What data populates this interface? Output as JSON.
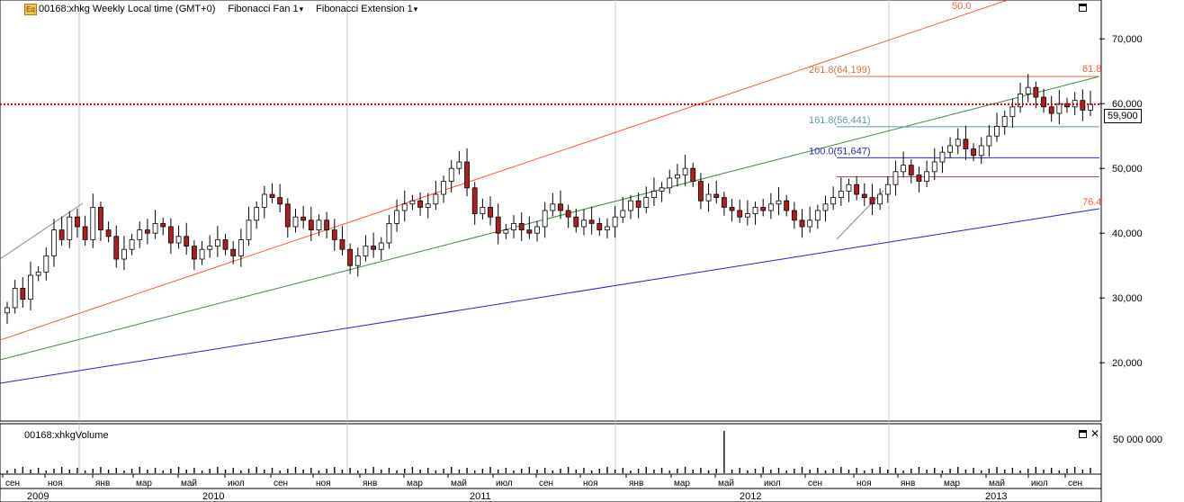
{
  "header": {
    "icon_label": "Eq",
    "symbol": "00168:xhkg Weekly Local time (GMT+0)",
    "tool1": "Fibonacci Fan 1",
    "tool2": "Fibonacci Extension 1"
  },
  "volume_panel": {
    "label": "00168:xhkgVolume",
    "axis_label": "50 000 000"
  },
  "current_price_label": "59,900",
  "colors": {
    "up_candle": "#ffffff",
    "down_candle": "#b01e1e",
    "price_line": "#d40000",
    "fan_500": "#ff5a36",
    "fan_618": "#3c8c3c",
    "fan_764": "#2020d0",
    "ext_2618": "#cc7744",
    "ext_1618": "#5a9aaa",
    "ext_1000": "#2a2ab0",
    "ext_base": "#a05050"
  },
  "chart_data": {
    "type": "candlestick",
    "title": "00168:xhkg Weekly Local time (GMT+0)",
    "y_axis": {
      "ticks": [
        "20,000",
        "30,000",
        "40,000",
        "50,000",
        "60,000",
        "70,000"
      ],
      "tick_values": [
        20000,
        30000,
        40000,
        50000,
        60000,
        70000
      ],
      "range": [
        11000,
        76000
      ]
    },
    "x_axis": {
      "month_labels": [
        "сен",
        "ноя",
        "янв",
        "мар",
        "май",
        "июл",
        "сен",
        "ноя",
        "янв",
        "мар",
        "май",
        "июл",
        "сен",
        "ноя",
        "янв",
        "мар",
        "май",
        "июл",
        "сен",
        "ноя",
        "янв",
        "мар",
        "май",
        "июл",
        "сен"
      ],
      "year_labels": [
        "2009",
        "2010",
        "2011",
        "2012",
        "2013"
      ]
    },
    "current_price": 59900,
    "fibonacci_fan": [
      {
        "level": "50.0",
        "color": "#ff5a36"
      },
      {
        "level": "61.8",
        "color": "#3c8c3c"
      },
      {
        "level": "76.4",
        "color": "#2020d0"
      }
    ],
    "fibonacci_extension": [
      {
        "label": "261.8(64,199)",
        "value": 64199,
        "color": "#cc7744"
      },
      {
        "label": "161.8(56,441)",
        "value": 56441,
        "color": "#5a9aaa"
      },
      {
        "label": "100.0(51,647)",
        "value": 51647,
        "color": "#2a2ab0"
      },
      {
        "label": "",
        "value": 48700,
        "color": "#a05050"
      }
    ],
    "closes": [
      28500,
      31500,
      29800,
      33500,
      34000,
      36500,
      40500,
      39000,
      42500,
      41000,
      39000,
      44000,
      40500,
      39500,
      36000,
      37500,
      39000,
      40500,
      40000,
      41500,
      41000,
      38500,
      39500,
      38000,
      36000,
      37500,
      38000,
      39000,
      37500,
      36500,
      39000,
      42000,
      44000,
      46000,
      45500,
      44500,
      41000,
      42500,
      42000,
      40500,
      42000,
      40500,
      39000,
      37500,
      35000,
      36500,
      38000,
      37500,
      38500,
      41500,
      43500,
      44500,
      45000,
      44000,
      44500,
      46000,
      48000,
      50000,
      51000,
      47000,
      43000,
      44000,
      42500,
      40000,
      40500,
      41500,
      40500,
      40000,
      41000,
      43500,
      44500,
      43500,
      42500,
      41000,
      42000,
      41500,
      40500,
      41000,
      42500,
      43500,
      45000,
      44000,
      45500,
      46500,
      47000,
      48500,
      49000,
      50000,
      48000,
      45000,
      46000,
      45500,
      44000,
      43500,
      42500,
      43000,
      44000,
      43500,
      44500,
      45000,
      43500,
      42000,
      41000,
      42000,
      43500,
      44500,
      45500,
      46500,
      47500,
      46000,
      45500,
      44500,
      46000,
      47500,
      49500,
      50500,
      49000,
      48000,
      49500,
      51000,
      52500,
      53500,
      54500,
      53000,
      52000,
      53500,
      55000,
      56500,
      58000,
      59500,
      61500,
      62500,
      61000,
      59500,
      58500,
      60000,
      59500,
      60500,
      59000,
      59900
    ],
    "volume_spike_index": 92
  }
}
